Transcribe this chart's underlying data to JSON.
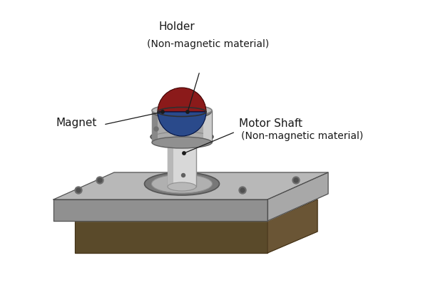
{
  "bg_color": "#ffffff",
  "labels": {
    "holder": "Holder",
    "holder_sub": "(Non-magnetic material)",
    "magnet": "Magnet",
    "motor_shaft": "Motor Shaft",
    "motor_shaft_sub": "(Non-magnetic material)"
  },
  "colors": {
    "bg": "#ffffff",
    "shaft_light": "#d8d8d8",
    "shaft_mid": "#b8b8b8",
    "shaft_dark": "#909090",
    "plate_top": "#b8b8b8",
    "plate_front": "#909090",
    "plate_right": "#a8a8a8",
    "base_front": "#5a4a2a",
    "base_top": "#7a6a4a",
    "base_right": "#6a5535",
    "magnet_red": "#8b1a1a",
    "magnet_blue": "#2a4a8b",
    "holder_body": "#aaaaaa",
    "holder_dark": "#888888",
    "holder_light": "#cccccc",
    "ring_dark": "#808080",
    "ring_light": "#c0c0c0",
    "text_color": "#1a1a1a",
    "outline": "#505050"
  },
  "font_sizes": {
    "label": 11,
    "sublabel": 10
  }
}
